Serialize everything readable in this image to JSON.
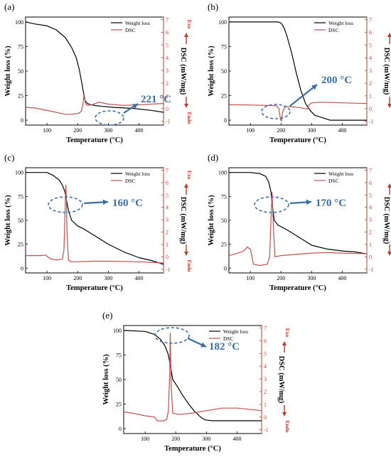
{
  "colors": {
    "weight": "#000000",
    "dsc": "#c0504d",
    "right_axis": "#c0392b",
    "annotation": "#3a6ea5"
  },
  "common": {
    "xlabel": "Temperature (°C)",
    "ylabel_left": "Weight loss (%)",
    "ylabel_right": "DSC (mW/mg)",
    "legend": [
      "Weight loss",
      "DSC"
    ],
    "exo": "Exo",
    "endo": "Endo",
    "x_ticks": [
      100,
      200,
      300,
      400
    ],
    "y_left_ticks": [
      0,
      25,
      50,
      75,
      100
    ],
    "y_right_ticks": [
      -1,
      0,
      1,
      2,
      3,
      4,
      5,
      6,
      7
    ],
    "xlim": [
      30,
      480
    ],
    "ylim_left": [
      -5,
      105
    ],
    "ylim_right": [
      -1.3,
      7.2
    ]
  },
  "chart_data": [
    {
      "type": "line",
      "panel": "(a)",
      "annotation": "221 °C",
      "peak_temp": 221,
      "series": [
        {
          "name": "Weight loss",
          "axis": "left",
          "x": [
            30,
            60,
            100,
            130,
            160,
            180,
            195,
            205,
            212,
            218,
            222,
            226,
            232,
            240,
            255,
            280,
            320,
            380,
            440,
            480
          ],
          "y": [
            100,
            98,
            96,
            92,
            84,
            74,
            64,
            52,
            40,
            30,
            22,
            19,
            17,
            16,
            15,
            14,
            13,
            12,
            10,
            8
          ]
        },
        {
          "name": "DSC",
          "axis": "right",
          "x": [
            30,
            60,
            100,
            130,
            160,
            180,
            195,
            205,
            212,
            217,
            221,
            225,
            232,
            245,
            270,
            300,
            350,
            400,
            440,
            480
          ],
          "y": [
            0.1,
            0.05,
            -0.15,
            -0.3,
            -0.45,
            -0.45,
            -0.4,
            -0.35,
            -0.2,
            0.3,
            1.2,
            0.4,
            0.25,
            0.3,
            0.5,
            0.35,
            0.25,
            0.3,
            0.35,
            0.4
          ]
        }
      ]
    },
    {
      "type": "line",
      "panel": "(b)",
      "annotation": "200 °C",
      "peak_temp": 200,
      "series": [
        {
          "name": "Weight loss",
          "axis": "left",
          "x": [
            30,
            100,
            150,
            190,
            200,
            210,
            220,
            235,
            250,
            265,
            280,
            295,
            310,
            330,
            360,
            400,
            480
          ],
          "y": [
            100,
            100,
            100,
            100,
            99,
            94,
            85,
            68,
            48,
            30,
            17,
            10,
            5,
            3,
            0,
            0,
            0
          ]
        },
        {
          "name": "DSC",
          "axis": "right",
          "x": [
            30,
            100,
            150,
            185,
            193,
            198,
            201,
            205,
            212,
            230,
            260,
            285,
            292,
            300,
            330,
            400,
            480
          ],
          "y": [
            0.3,
            0.28,
            0.25,
            0.22,
            0.0,
            -0.8,
            -1.0,
            -0.3,
            0.15,
            0.15,
            0.08,
            -0.05,
            0.3,
            0.45,
            0.5,
            0.45,
            0.4
          ]
        }
      ]
    },
    {
      "type": "line",
      "panel": "(c)",
      "annotation": "160 °C",
      "peak_temp": 160,
      "series": [
        {
          "name": "Weight loss",
          "axis": "left",
          "x": [
            30,
            100,
            120,
            140,
            150,
            158,
            163,
            170,
            180,
            200,
            220,
            260,
            300,
            350,
            400,
            440,
            480
          ],
          "y": [
            100,
            100,
            97,
            92,
            87,
            80,
            72,
            60,
            50,
            44,
            41,
            33,
            25,
            17,
            11,
            8,
            4
          ]
        },
        {
          "name": "DSC",
          "axis": "right",
          "x": [
            30,
            80,
            95,
            110,
            130,
            150,
            155,
            158,
            161,
            163,
            165,
            170,
            180,
            200,
            250,
            300,
            400,
            480
          ],
          "y": [
            0.1,
            0.1,
            0.15,
            -0.15,
            -0.25,
            -0.2,
            0.5,
            3.0,
            5.8,
            5.0,
            2.0,
            -0.3,
            -0.4,
            -0.4,
            -0.35,
            -0.35,
            -0.4,
            -0.5
          ]
        }
      ]
    },
    {
      "type": "line",
      "panel": "(d)",
      "annotation": "170 °C",
      "peak_temp": 170,
      "series": [
        {
          "name": "Weight loss",
          "axis": "left",
          "x": [
            30,
            100,
            130,
            150,
            160,
            167,
            172,
            178,
            190,
            220,
            260,
            300,
            350,
            400,
            440,
            480
          ],
          "y": [
            100,
            100,
            99,
            96,
            90,
            80,
            65,
            50,
            45,
            40,
            32,
            24,
            20,
            18,
            17,
            15
          ]
        },
        {
          "name": "DSC",
          "axis": "right",
          "x": [
            30,
            60,
            80,
            90,
            100,
            110,
            130,
            155,
            163,
            168,
            171,
            174,
            180,
            200,
            250,
            300,
            350,
            400,
            480
          ],
          "y": [
            0.1,
            0.3,
            0.5,
            0.8,
            0.6,
            -0.6,
            -0.7,
            -0.6,
            0.0,
            3.5,
            5.2,
            3.0,
            0.0,
            0.1,
            0.2,
            0.3,
            0.35,
            0.3,
            0.25
          ]
        }
      ]
    },
    {
      "type": "line",
      "panel": "(e)",
      "annotation": "182 °C",
      "peak_temp": 182,
      "series": [
        {
          "name": "Weight loss",
          "axis": "left",
          "x": [
            30,
            100,
            130,
            150,
            165,
            175,
            182,
            190,
            205,
            220,
            240,
            260,
            280,
            295,
            320,
            400,
            480
          ],
          "y": [
            100,
            99,
            96,
            91,
            84,
            76,
            65,
            50,
            43,
            35,
            26,
            18,
            12,
            9,
            8,
            8,
            8
          ]
        },
        {
          "name": "DSC",
          "axis": "right",
          "x": [
            30,
            60,
            100,
            130,
            140,
            150,
            160,
            170,
            176,
            180,
            182,
            185,
            190,
            210,
            250,
            300,
            350,
            400,
            480
          ],
          "y": [
            0.4,
            0.3,
            0.1,
            0.0,
            -0.3,
            -0.3,
            -0.3,
            -0.2,
            0.5,
            3.5,
            6.6,
            2.5,
            0.3,
            0.2,
            0.3,
            0.5,
            0.7,
            0.7,
            0.5
          ]
        }
      ]
    }
  ]
}
